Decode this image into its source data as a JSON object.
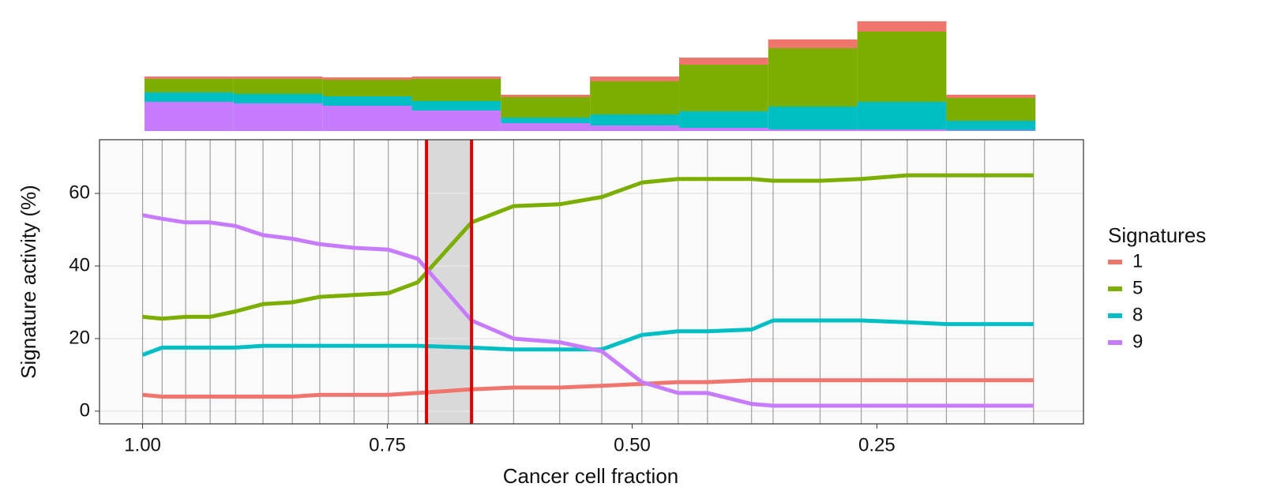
{
  "chart_data": [
    {
      "type": "line",
      "x_label": "Cancer cell fraction",
      "y_label": "Signature activity (%)",
      "legend_title": "Signatures",
      "legend": "right",
      "x": [
        1.0,
        0.98,
        0.956,
        0.931,
        0.905,
        0.877,
        0.847,
        0.819,
        0.784,
        0.749,
        0.719,
        0.664,
        0.621,
        0.574,
        0.531,
        0.49,
        0.453,
        0.423,
        0.378,
        0.356,
        0.308,
        0.266,
        0.219,
        0.179,
        0.14,
        0.09
      ],
      "series": [
        {
          "name": "1",
          "color": "#f0766d",
          "values": [
            4.5,
            4,
            4,
            4,
            4,
            4,
            4,
            4.5,
            4.5,
            4.5,
            5,
            6,
            6.5,
            6.5,
            7,
            7.5,
            8,
            8,
            8.5,
            8.5,
            8.5,
            8.5,
            8.5,
            8.5,
            8.5,
            8.5
          ]
        },
        {
          "name": "5",
          "color": "#7cae00",
          "values": [
            26,
            25.5,
            26,
            26,
            27.5,
            29.5,
            30,
            31.5,
            32,
            32.5,
            35.5,
            52,
            56.5,
            57,
            59,
            63,
            64,
            64,
            64,
            63.5,
            63.5,
            64,
            65,
            65,
            65,
            65
          ]
        },
        {
          "name": "8",
          "color": "#00bfc4",
          "values": [
            15.5,
            17.5,
            17.5,
            17.5,
            17.5,
            18,
            18,
            18,
            18,
            18,
            18,
            17.5,
            17,
            17,
            17,
            21,
            22,
            22,
            22.5,
            25,
            25,
            25,
            24.5,
            24,
            24,
            24
          ]
        },
        {
          "name": "9",
          "color": "#c77cff",
          "values": [
            54,
            53,
            52,
            52,
            51,
            48.5,
            47.5,
            46,
            45,
            44.5,
            42,
            25,
            20,
            19,
            16.5,
            8,
            5,
            5,
            2,
            1.5,
            1.5,
            1.5,
            1.5,
            1.5,
            1.5,
            1.5
          ]
        }
      ],
      "changepoints": [
        0.71,
        0.664
      ],
      "changepoint_color": "#e00000",
      "xlim": [
        1.044,
        0.039
      ],
      "xticks": [
        {
          "value": 1,
          "label": "1.00"
        },
        {
          "value": 0.75,
          "label": "0.75"
        },
        {
          "value": 0.5,
          "label": "0.50"
        },
        {
          "value": 0.25,
          "label": "0.25"
        }
      ],
      "ylim": [
        -3.5,
        74.8
      ],
      "yticks": [
        0,
        20,
        40,
        60
      ],
      "grid": true
    },
    {
      "type": "histogram",
      "bins": [
        0.998,
        0.907,
        0.816,
        0.725,
        0.634,
        0.543,
        0.452,
        0.361,
        0.27,
        0.179,
        0.088
      ],
      "series": [
        {
          "color": "#f0766d",
          "values": [
            3,
            3,
            3,
            3,
            3,
            6,
            9,
            11,
            13,
            4
          ]
        },
        {
          "color": "#7cae00",
          "values": [
            17,
            19,
            21,
            28,
            26,
            42,
            59,
            74,
            89,
            29
          ]
        },
        {
          "color": "#00bfc4",
          "values": [
            12,
            12,
            12,
            12,
            7,
            14,
            21,
            29,
            35,
            12
          ]
        },
        {
          "color": "#c77cff",
          "values": [
            37,
            35,
            32,
            26,
            10,
            7,
            4,
            2,
            2,
            1
          ]
        }
      ]
    }
  ]
}
